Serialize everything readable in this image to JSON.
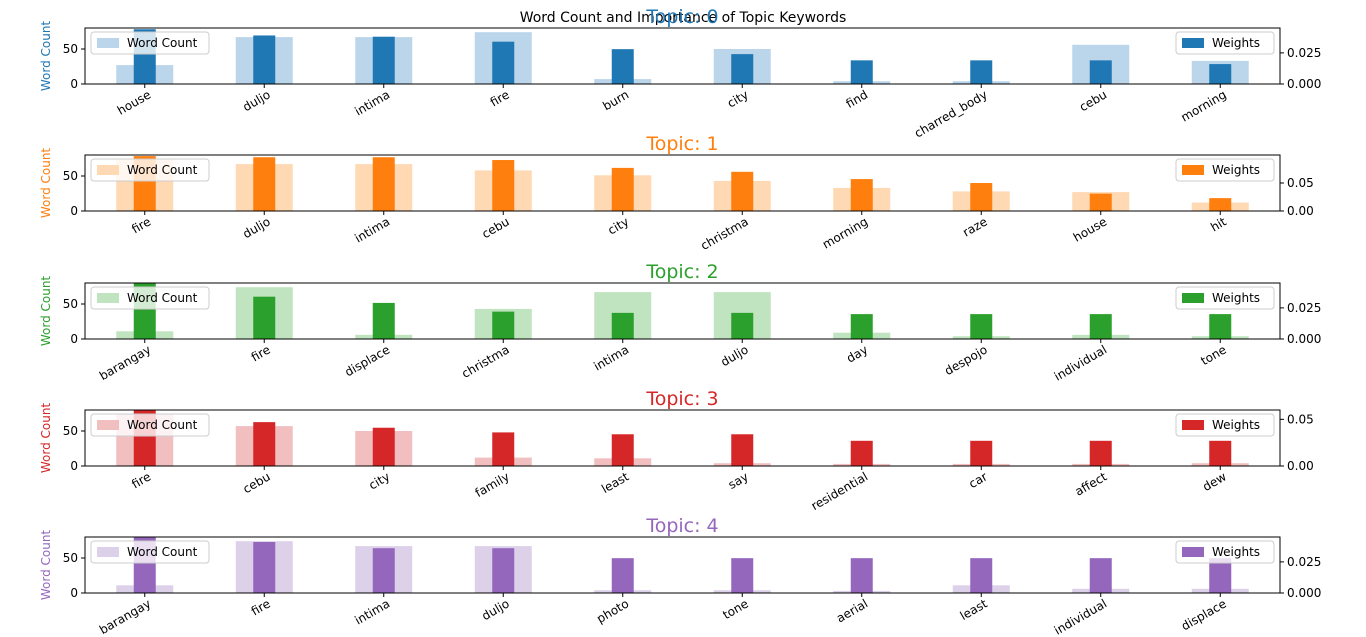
{
  "figure": {
    "title": "Word Count and Importance of Topic Keywords"
  },
  "chart_data": [
    {
      "type": "bar",
      "title": "Topic: 0",
      "color": "#1f77b4",
      "light_color": "#bbd5ea",
      "ylabel": "Word Count",
      "categories": [
        "house",
        "duljo",
        "intima",
        "fire",
        "burn",
        "city",
        "find",
        "charred_body",
        "cebu",
        "morning"
      ],
      "series": [
        {
          "name": "Word Count",
          "axis": "left",
          "values": [
            27,
            67,
            67,
            74,
            7,
            50,
            4,
            4,
            56,
            33
          ]
        },
        {
          "name": "Weights",
          "axis": "right",
          "values": [
            0.044,
            0.039,
            0.038,
            0.034,
            0.028,
            0.024,
            0.019,
            0.019,
            0.019,
            0.016
          ]
        }
      ],
      "ylim": [
        0,
        80
      ],
      "yticks": [
        0,
        50
      ],
      "ylim_right": [
        0,
        0.045
      ],
      "yticks_right": [
        0.0,
        0.025
      ],
      "ytick_labels_right": [
        "0.000",
        "0.025"
      ],
      "legend_left": "Word Count",
      "legend_right": "Weights"
    },
    {
      "type": "bar",
      "title": "Topic: 1",
      "color": "#ff7f0e",
      "light_color": "#ffd8b4",
      "ylabel": "Word Count",
      "categories": [
        "fire",
        "duljo",
        "intima",
        "cebu",
        "city",
        "christma",
        "morning",
        "raze",
        "house",
        "hit"
      ],
      "series": [
        {
          "name": "Word Count",
          "axis": "left",
          "values": [
            74,
            67,
            67,
            58,
            51,
            43,
            33,
            28,
            27,
            12
          ]
        },
        {
          "name": "Weights",
          "axis": "right",
          "values": [
            0.098,
            0.096,
            0.096,
            0.091,
            0.077,
            0.07,
            0.057,
            0.05,
            0.031,
            0.023
          ]
        }
      ],
      "ylim": [
        0,
        80
      ],
      "yticks": [
        0,
        50
      ],
      "ylim_right": [
        0,
        0.1
      ],
      "yticks_right": [
        0.0,
        0.05
      ],
      "ytick_labels_right": [
        "0.00",
        "0.05"
      ],
      "legend_left": "Word Count",
      "legend_right": "Weights"
    },
    {
      "type": "bar",
      "title": "Topic: 2",
      "color": "#2ca02c",
      "light_color": "#c0e4bf",
      "ylabel": "Word Count",
      "categories": [
        "barangay",
        "fire",
        "displace",
        "christma",
        "intima",
        "duljo",
        "day",
        "despojo",
        "individual",
        "tone"
      ],
      "series": [
        {
          "name": "Word Count",
          "axis": "left",
          "values": [
            11,
            74,
            6,
            43,
            67,
            67,
            9,
            4,
            6,
            4
          ]
        },
        {
          "name": "Weights",
          "axis": "right",
          "values": [
            0.045,
            0.034,
            0.029,
            0.022,
            0.021,
            0.021,
            0.02,
            0.02,
            0.02,
            0.02
          ]
        }
      ],
      "ylim": [
        0,
        80
      ],
      "yticks": [
        0,
        50
      ],
      "ylim_right": [
        0,
        0.045
      ],
      "yticks_right": [
        0.0,
        0.025
      ],
      "ytick_labels_right": [
        "0.000",
        "0.025"
      ],
      "legend_left": "Word Count",
      "legend_right": "Weights"
    },
    {
      "type": "bar",
      "title": "Topic: 3",
      "color": "#d62728",
      "light_color": "#f2bfc0",
      "ylabel": "Word Count",
      "categories": [
        "fire",
        "cebu",
        "city",
        "family",
        "least",
        "say",
        "residential",
        "car",
        "affect",
        "dew"
      ],
      "series": [
        {
          "name": "Word Count",
          "axis": "left",
          "values": [
            74,
            57,
            50,
            12,
            11,
            4,
            3,
            3,
            3,
            4
          ]
        },
        {
          "name": "Weights",
          "axis": "right",
          "values": [
            0.06,
            0.047,
            0.041,
            0.036,
            0.034,
            0.034,
            0.027,
            0.027,
            0.027,
            0.027
          ]
        }
      ],
      "ylim": [
        0,
        80
      ],
      "yticks": [
        0,
        50
      ],
      "ylim_right": [
        0,
        0.06
      ],
      "yticks_right": [
        0.0,
        0.05
      ],
      "ytick_labels_right": [
        "0.00",
        "0.05"
      ],
      "legend_left": "Word Count",
      "legend_right": "Weights"
    },
    {
      "type": "bar",
      "title": "Topic: 4",
      "color": "#9467bd",
      "light_color": "#ddd1ea",
      "ylabel": "Word Count",
      "categories": [
        "barangay",
        "fire",
        "intima",
        "duljo",
        "photo",
        "tone",
        "aerial",
        "least",
        "individual",
        "displace"
      ],
      "series": [
        {
          "name": "Word Count",
          "axis": "left",
          "values": [
            11,
            74,
            67,
            67,
            4,
            4,
            3,
            11,
            6,
            6
          ]
        },
        {
          "name": "Weights",
          "axis": "right",
          "values": [
            0.045,
            0.041,
            0.036,
            0.036,
            0.028,
            0.028,
            0.028,
            0.028,
            0.028,
            0.028
          ]
        }
      ],
      "ylim": [
        0,
        80
      ],
      "yticks": [
        0,
        50
      ],
      "ylim_right": [
        0,
        0.045
      ],
      "yticks_right": [
        0.0,
        0.025
      ],
      "ytick_labels_right": [
        "0.000",
        "0.025"
      ],
      "legend_left": "Word Count",
      "legend_right": "Weights"
    }
  ]
}
